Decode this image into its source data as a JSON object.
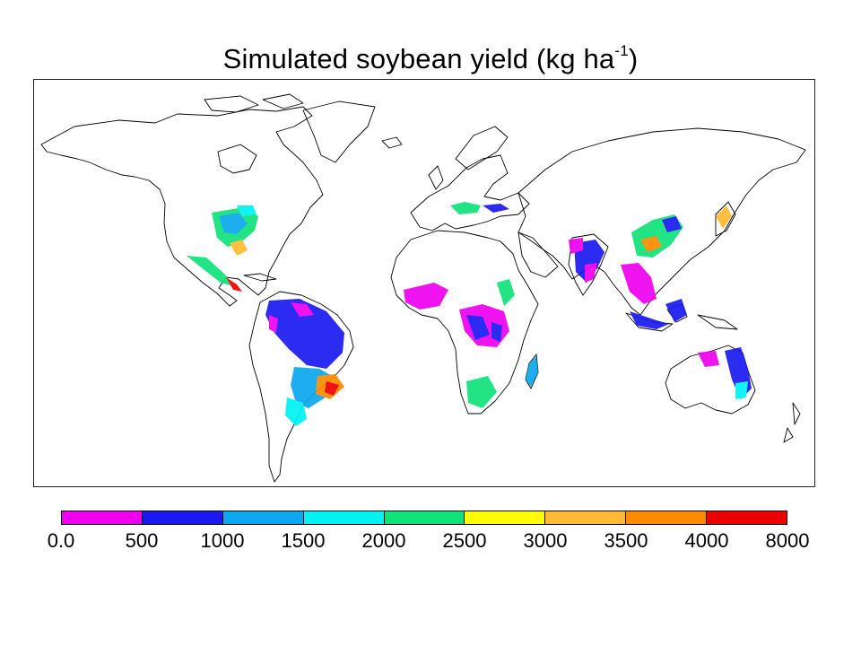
{
  "map": {
    "title_text": "Simulated soybean yield (kg ha",
    "title_exponent": "-1",
    "title_close": ")",
    "legend": {
      "type": "discrete-color-bar",
      "tick_labels": [
        "0.0",
        "500",
        "1000",
        "1500",
        "2000",
        "2500",
        "3000",
        "3500",
        "4000",
        "8000"
      ],
      "colors": [
        "#ee00ee",
        "#1a1af0",
        "#0ca8ee",
        "#00f2f2",
        "#10e27a",
        "#ffff00",
        "#ffbb33",
        "#ff8c00",
        "#ee0000"
      ]
    },
    "projection": "cylindrical equidistant",
    "region": "world"
  }
}
